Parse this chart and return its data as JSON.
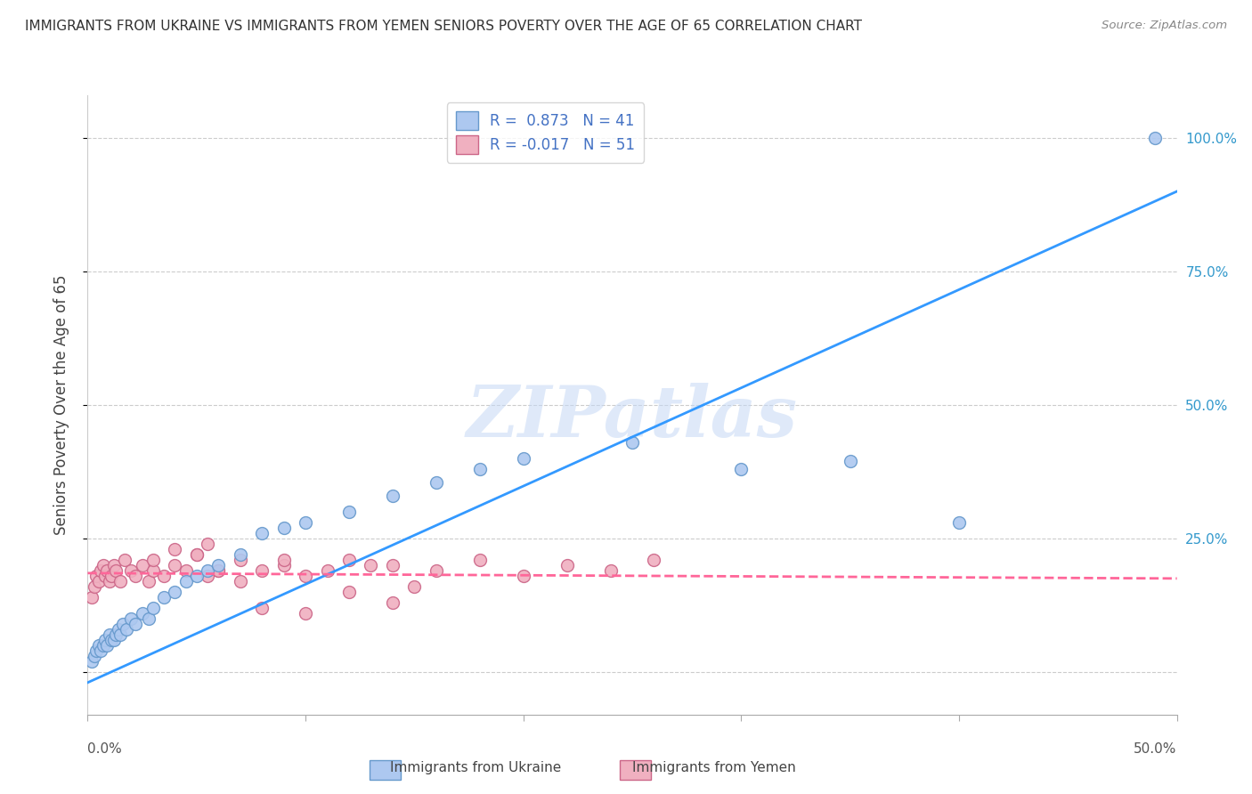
{
  "title": "IMMIGRANTS FROM UKRAINE VS IMMIGRANTS FROM YEMEN SENIORS POVERTY OVER THE AGE OF 65 CORRELATION CHART",
  "source": "Source: ZipAtlas.com",
  "ylabel": "Seniors Poverty Over the Age of 65",
  "ytick_labels": [
    "",
    "25.0%",
    "50.0%",
    "75.0%",
    "100.0%"
  ],
  "ytick_vals": [
    0.0,
    0.25,
    0.5,
    0.75,
    1.0
  ],
  "right_ytick_labels": [
    "",
    "25.0%",
    "50.0%",
    "75.0%",
    "100.0%"
  ],
  "xlim": [
    0.0,
    0.5
  ],
  "ylim": [
    -0.08,
    1.08
  ],
  "ukraine_color": "#adc8f0",
  "ukraine_edge": "#6699cc",
  "ukraine_line": "#3399ff",
  "yemen_color": "#f0b0c0",
  "yemen_edge": "#cc6688",
  "yemen_line": "#ff6699",
  "legend_ukraine_label": "R =  0.873   N = 41",
  "legend_yemen_label": "R = -0.017   N = 51",
  "watermark_text": "ZIPatlas",
  "legend_text_color": "#4472c4",
  "ukraine_scatter_x": [
    0.002,
    0.003,
    0.004,
    0.005,
    0.006,
    0.007,
    0.008,
    0.009,
    0.01,
    0.011,
    0.012,
    0.013,
    0.014,
    0.015,
    0.016,
    0.018,
    0.02,
    0.022,
    0.025,
    0.028,
    0.03,
    0.035,
    0.04,
    0.045,
    0.05,
    0.055,
    0.06,
    0.07,
    0.08,
    0.09,
    0.1,
    0.12,
    0.14,
    0.16,
    0.18,
    0.2,
    0.25,
    0.3,
    0.35,
    0.4,
    0.49
  ],
  "ukraine_scatter_y": [
    0.02,
    0.03,
    0.04,
    0.05,
    0.04,
    0.05,
    0.06,
    0.05,
    0.07,
    0.06,
    0.06,
    0.07,
    0.08,
    0.07,
    0.09,
    0.08,
    0.1,
    0.09,
    0.11,
    0.1,
    0.12,
    0.14,
    0.15,
    0.17,
    0.18,
    0.19,
    0.2,
    0.22,
    0.26,
    0.27,
    0.28,
    0.3,
    0.33,
    0.355,
    0.38,
    0.4,
    0.43,
    0.38,
    0.395,
    0.28,
    1.0
  ],
  "yemen_scatter_x": [
    0.002,
    0.003,
    0.004,
    0.005,
    0.006,
    0.007,
    0.008,
    0.009,
    0.01,
    0.011,
    0.012,
    0.013,
    0.015,
    0.017,
    0.02,
    0.022,
    0.025,
    0.028,
    0.03,
    0.035,
    0.04,
    0.045,
    0.05,
    0.055,
    0.06,
    0.07,
    0.08,
    0.09,
    0.1,
    0.12,
    0.14,
    0.16,
    0.18,
    0.2,
    0.22,
    0.24,
    0.26,
    0.12,
    0.14,
    0.055,
    0.08,
    0.1,
    0.03,
    0.04,
    0.05,
    0.06,
    0.07,
    0.09,
    0.11,
    0.13,
    0.15
  ],
  "yemen_scatter_y": [
    0.14,
    0.16,
    0.18,
    0.17,
    0.19,
    0.2,
    0.18,
    0.19,
    0.17,
    0.18,
    0.2,
    0.19,
    0.17,
    0.21,
    0.19,
    0.18,
    0.2,
    0.17,
    0.19,
    0.18,
    0.2,
    0.19,
    0.22,
    0.18,
    0.19,
    0.21,
    0.19,
    0.2,
    0.18,
    0.21,
    0.2,
    0.19,
    0.21,
    0.18,
    0.2,
    0.19,
    0.21,
    0.15,
    0.13,
    0.24,
    0.12,
    0.11,
    0.21,
    0.23,
    0.22,
    0.19,
    0.17,
    0.21,
    0.19,
    0.2,
    0.16
  ],
  "ukraine_line_x": [
    0.0,
    0.5
  ],
  "ukraine_line_y": [
    -0.02,
    0.9
  ],
  "yemen_line_x": [
    0.0,
    0.5
  ],
  "yemen_line_y": [
    0.185,
    0.175
  ]
}
